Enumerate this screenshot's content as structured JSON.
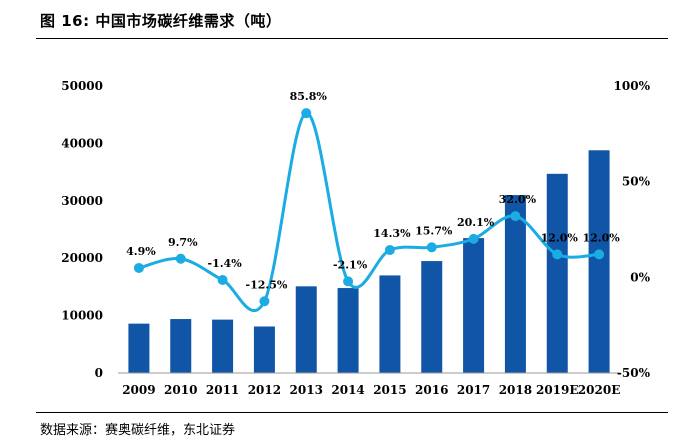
{
  "figure": {
    "title": "图 16: 中国市场碳纤维需求（吨）",
    "source": "数据来源：赛奥碳纤维，东北证券"
  },
  "colors": {
    "bar": "#1155A6",
    "line": "#1AACE3",
    "axis": "#999999"
  },
  "chart_data": {
    "type": "bar",
    "categories": [
      "2009",
      "2010",
      "2011",
      "2012",
      "2013",
      "2014",
      "2015",
      "2016",
      "2017",
      "2018",
      "2019E",
      "2020E"
    ],
    "series": [
      {
        "values": [
          8600,
          9400,
          9300,
          8100,
          15100,
          14800,
          17000,
          19500,
          23500,
          31000,
          34700,
          38800
        ],
        "type": "bar",
        "axis": "left"
      },
      {
        "values": [
          4.9,
          9.7,
          -1.4,
          -12.5,
          85.8,
          -2.1,
          14.3,
          15.7,
          20.1,
          32.0,
          12.0,
          12.0
        ],
        "type": "line",
        "smooth": true,
        "axis": "right",
        "labels": [
          "4.9%",
          "9.7%",
          "-1.4%",
          "-12.5%",
          "85.8%",
          "-2.1%",
          "14.3%",
          "15.7%",
          "20.1%",
          "32.0%",
          "12.0%",
          "12.0%"
        ]
      }
    ],
    "y_left": {
      "ylim": [
        0,
        50000
      ],
      "ticks": [
        "0",
        "10000",
        "20000",
        "30000",
        "40000",
        "50000"
      ]
    },
    "y_right": {
      "ylim": [
        -50,
        100
      ],
      "ticks": [
        "-50%",
        "0%",
        "50%",
        "100%"
      ]
    },
    "grid": false,
    "legend": "none"
  }
}
